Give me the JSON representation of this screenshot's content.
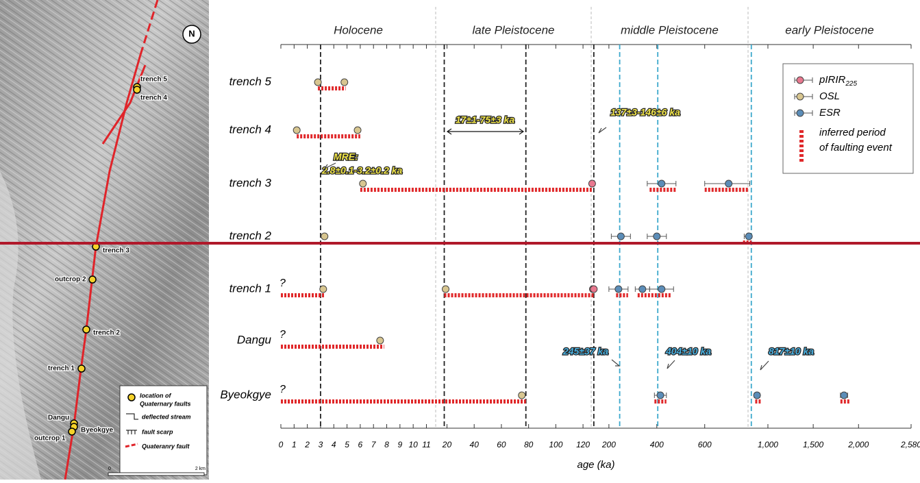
{
  "map": {
    "north": "N",
    "sites": [
      "trench 5",
      "trench 4",
      "trench 3",
      "outcrop 2",
      "trench 2",
      "trench 1",
      "Dangu",
      "Byeokgye",
      "outcrop 1"
    ],
    "legend": [
      "location of",
      "Quaternary faults",
      "deflected stream",
      "fault scarp",
      "Quateranry fault"
    ],
    "scale": [
      "0",
      "2 km"
    ]
  },
  "chart_data": {
    "type": "timeline",
    "xlabel": "age (ka)",
    "epochs": [
      {
        "name": "Holocene",
        "start": 0,
        "end": 11.7
      },
      {
        "name": "late Pleistocene",
        "start": 11.7,
        "end": 126
      },
      {
        "name": "middle Pleistocene",
        "start": 126,
        "end": 781
      },
      {
        "name": "early Pleistocene",
        "start": 781,
        "end": 2580
      }
    ],
    "xlim": [
      0,
      2580
    ],
    "xticks": [
      0,
      1,
      2,
      3,
      4,
      5,
      6,
      7,
      8,
      9,
      10,
      11,
      20,
      40,
      60,
      80,
      100,
      120,
      200,
      400,
      600,
      {
        "value": 1000,
        "label": "1,000"
      },
      {
        "value": 1500,
        "label": "1,500"
      },
      {
        "value": 2000,
        "label": "2,000"
      },
      {
        "value": 2580,
        "label": "2,580"
      }
    ],
    "categories": [
      "trench 5",
      "trench 4",
      "trench 3",
      "trench 2",
      "trench 1",
      "Dangu",
      "Byeokgye"
    ],
    "uncertain": {
      "label": "?",
      "categories": [
        "trench 1",
        "Dangu",
        "Byeokgye"
      ]
    },
    "series": [
      {
        "name": "pIRIR",
        "name_subscript": "225",
        "color": "#e8788f",
        "points": [
          {
            "category": "trench 3",
            "x": 130
          },
          {
            "category": "trench 1",
            "x": 133
          },
          {
            "category": "trench 1",
            "x": 137
          }
        ]
      },
      {
        "name": "OSL",
        "color": "#d8c690",
        "points": [
          {
            "category": "trench 5",
            "x": 2.8
          },
          {
            "category": "trench 5",
            "x": 4.8
          },
          {
            "category": "trench 4",
            "x": 1.2
          },
          {
            "category": "trench 4",
            "x": 5.8
          },
          {
            "category": "trench 3",
            "x": 6.2
          },
          {
            "category": "trench 2",
            "x": 3.3
          },
          {
            "category": "trench 1",
            "x": 3.2
          },
          {
            "category": "trench 1",
            "x": 19
          },
          {
            "category": "Dangu",
            "x": 7.5
          },
          {
            "category": "Byeokgye",
            "x": 75
          }
        ]
      },
      {
        "name": "ESR",
        "color": "#5b8db8",
        "points": [
          {
            "category": "trench 3",
            "x": 420,
            "err": 60
          },
          {
            "category": "trench 3",
            "x": 700,
            "err": 100
          },
          {
            "category": "trench 2",
            "x": 250,
            "err": 40
          },
          {
            "category": "trench 2",
            "x": 400,
            "err": 40
          },
          {
            "category": "trench 2",
            "x": 790,
            "err": 25
          },
          {
            "category": "trench 1",
            "x": 240,
            "err": 40
          },
          {
            "category": "trench 1",
            "x": 340,
            "err": 30
          },
          {
            "category": "trench 1",
            "x": 420,
            "err": 50
          },
          {
            "category": "Byeokgye",
            "x": 415,
            "err": 25
          },
          {
            "category": "Byeokgye",
            "x": 880,
            "err": 30
          },
          {
            "category": "Byeokgye",
            "x": 1840,
            "err": 40
          }
        ]
      }
    ],
    "faulting": {
      "name": [
        "inferred period",
        "of faulting event"
      ],
      "color": "#e0282a",
      "periods": [
        {
          "category": "trench 5",
          "start": 2.8,
          "end": 4.9
        },
        {
          "category": "trench 4",
          "start": 1.2,
          "end": 6
        },
        {
          "category": "trench 3",
          "start": 6,
          "end": 130
        },
        {
          "category": "trench 3",
          "start": 370,
          "end": 480
        },
        {
          "category": "trench 3",
          "start": 600,
          "end": 781
        },
        {
          "category": "trench 2",
          "start": 760,
          "end": 820
        },
        {
          "category": "trench 1",
          "start": 0,
          "end": 3.3
        },
        {
          "category": "trench 1",
          "start": 18,
          "end": 140
        },
        {
          "category": "trench 1",
          "start": 230,
          "end": 280
        },
        {
          "category": "trench 1",
          "start": 320,
          "end": 460
        },
        {
          "category": "Dangu",
          "start": 0,
          "end": 7.8
        },
        {
          "category": "Byeokgye",
          "start": 0,
          "end": 78
        },
        {
          "category": "Byeokgye",
          "start": 390,
          "end": 440
        },
        {
          "category": "Byeokgye",
          "start": 860,
          "end": 920
        },
        {
          "category": "Byeokgye",
          "start": 1800,
          "end": 1900
        }
      ]
    },
    "reference_lines": [
      {
        "x": 3,
        "color": "#222222"
      },
      {
        "x": 18,
        "color": "#222222"
      },
      {
        "x": 78,
        "color": "#222222"
      },
      {
        "x": 137,
        "color": "#222222"
      },
      {
        "x": 245,
        "color": "#3ca8cc"
      },
      {
        "x": 404,
        "color": "#3ca8cc"
      },
      {
        "x": 817,
        "color": "#3ca8cc"
      }
    ],
    "annotations": [
      {
        "text": "MRE:",
        "color": "#f2e64a"
      },
      {
        "text": "2.8±0.1-3.2±0.2 ka",
        "color": "#f2e64a"
      },
      {
        "text": "17±1-75±3 ka",
        "color": "#f2e64a"
      },
      {
        "text": "137±3-146±6 ka",
        "color": "#f2e64a"
      },
      {
        "text": "245±37 ka",
        "color": "#4ab0e0"
      },
      {
        "text": "404±10 ka",
        "color": "#4ab0e0"
      },
      {
        "text": "817±10 ka",
        "color": "#4ab0e0"
      }
    ]
  }
}
